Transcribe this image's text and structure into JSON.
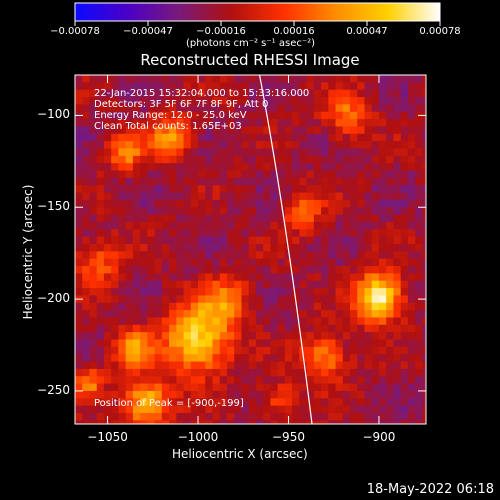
{
  "chart_data": {
    "type": "heatmap",
    "title": "Reconstructed RHESSI Image",
    "xlabel": "Heliocentric X (arcsec)",
    "ylabel": "Heliocentric Y (arcsec)",
    "xlim": [
      -1068,
      -874
    ],
    "ylim": [
      -268,
      -78
    ],
    "x_ticks": [
      -1050,
      -1000,
      -950,
      -900
    ],
    "y_ticks": [
      -100,
      -150,
      -200,
      -250
    ],
    "x_tick_labels": [
      "−1050",
      "−1000",
      "−950",
      "−900"
    ],
    "y_tick_labels": [
      "−100",
      "−150",
      "−200",
      "−250"
    ],
    "annotations": [
      "22-Jan-2015 15:32:04.000 to 15:33:16.000",
      "Detectors: 3F 5F 6F 7F 8F 9F, Att 0",
      "Energy Range: 12.0 - 25.0 keV",
      "Clean    Total counts: 1.65E+03"
    ],
    "peak_label": "Position of Peak = [-900,-199]",
    "peak_position": [
      -900,
      -199
    ],
    "limb_curve": [
      [
        -966,
        -78
      ],
      [
        -952,
        -150
      ],
      [
        -937,
        -268
      ]
    ],
    "sources": [
      {
        "x": -900,
        "y": -199,
        "intensity": 0.00078,
        "spread": 9
      },
      {
        "x": -1000,
        "y": -222,
        "intensity": 0.00062,
        "spread": 13
      },
      {
        "x": -1028,
        "y": -257,
        "intensity": 0.00055,
        "spread": 9
      },
      {
        "x": -1036,
        "y": -227,
        "intensity": 0.00036,
        "spread": 7
      },
      {
        "x": -1015,
        "y": -112,
        "intensity": 0.00034,
        "spread": 8
      },
      {
        "x": -1040,
        "y": -120,
        "intensity": 0.0003,
        "spread": 7
      },
      {
        "x": -942,
        "y": -152,
        "intensity": 0.00022,
        "spread": 8
      },
      {
        "x": -930,
        "y": -232,
        "intensity": 0.00033,
        "spread": 9
      },
      {
        "x": -985,
        "y": -200,
        "intensity": 0.00022,
        "spread": 9
      },
      {
        "x": -918,
        "y": -100,
        "intensity": 0.00024,
        "spread": 9
      },
      {
        "x": -1055,
        "y": -180,
        "intensity": 0.0002,
        "spread": 9
      },
      {
        "x": -1060,
        "y": -245,
        "intensity": 0.00027,
        "spread": 6
      },
      {
        "x": -955,
        "y": -255,
        "intensity": 0.00019,
        "spread": 7
      }
    ],
    "colorbar": {
      "unit_label": "(photons cm⁻² s⁻¹ asec⁻²)",
      "range": [
        -0.00078,
        0.00078
      ],
      "tick_labels": [
        "−0.00078",
        "−0.00047",
        "−0.00016",
        "0.00016",
        "0.00047",
        "0.00078"
      ],
      "stops": [
        "#0a0aff",
        "#4a00c8",
        "#7a1a7a",
        "#b01010",
        "#ff3000",
        "#ff8c00",
        "#ffd000",
        "#ffffff"
      ]
    }
  },
  "footer": {
    "timestamp": "18-May-2022 06:18"
  }
}
